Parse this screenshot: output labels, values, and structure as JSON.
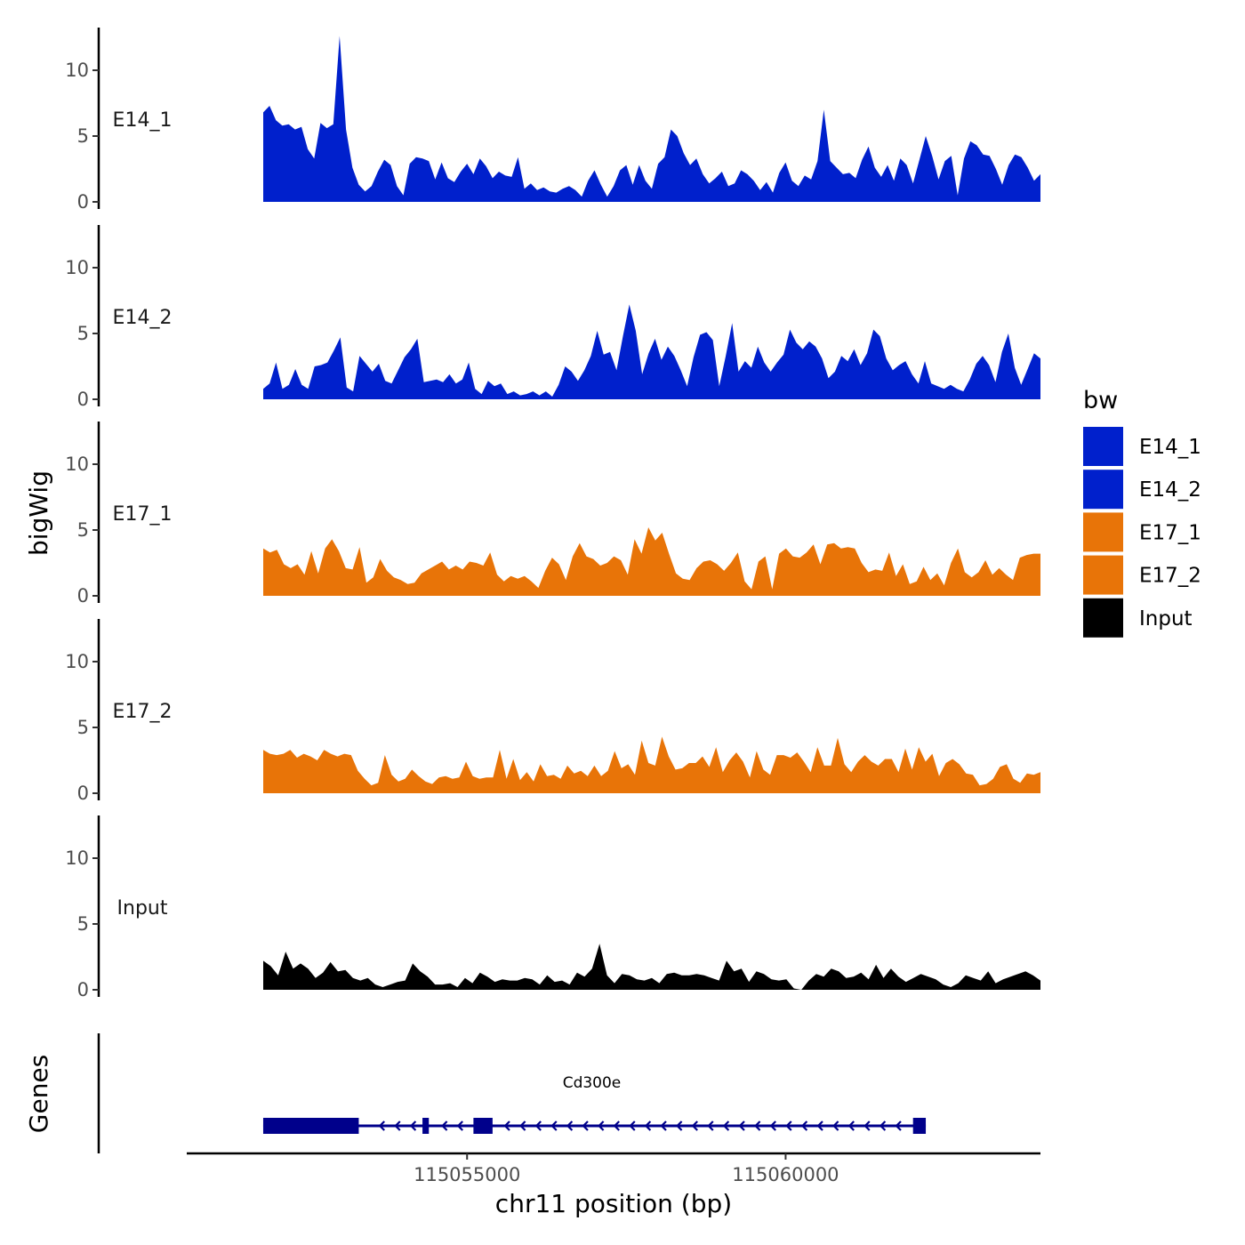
{
  "chart_data": {
    "type": "area",
    "title": "",
    "xlabel": "chr11 position (bp)",
    "ylabel": "bigWig",
    "genes_label": "Genes",
    "xlim": [
      115050600,
      115064000
    ],
    "x_ticks": [
      115055000,
      115060000
    ],
    "x_tick_labels": [
      "115055000",
      "115060000"
    ],
    "ylim": [
      0,
      13
    ],
    "y_ticks": [
      0,
      5,
      10
    ],
    "y_tick_labels": [
      "0",
      "5",
      "10"
    ],
    "region": [
      115051800,
      115064000
    ],
    "legend": {
      "title": "bw",
      "position": "right",
      "entries": [
        {
          "label": "E14_1",
          "color": "#0020CC"
        },
        {
          "label": "E14_2",
          "color": "#0020CC"
        },
        {
          "label": "E17_1",
          "color": "#E87408"
        },
        {
          "label": "E17_2",
          "color": "#E87408"
        },
        {
          "label": "Input",
          "color": "#000000"
        }
      ]
    },
    "series": [
      {
        "name": "E14_1",
        "color": "#0020CC",
        "values": [
          6.8,
          7.3,
          6.2,
          5.8,
          5.9,
          5.5,
          5.7,
          4.0,
          3.3,
          6.0,
          5.6,
          5.9,
          12.6,
          5.5,
          2.6,
          1.3,
          0.8,
          1.2,
          2.3,
          3.2,
          2.8,
          1.2,
          0.5,
          2.9,
          3.4,
          3.3,
          3.1,
          1.7,
          3.0,
          1.8,
          1.5,
          2.3,
          2.9,
          2.1,
          3.3,
          2.7,
          1.8,
          2.3,
          2.0,
          1.9,
          3.4,
          1.0,
          1.4,
          0.9,
          1.1,
          0.8,
          0.7,
          1.0,
          1.2,
          0.9,
          0.4,
          1.6,
          2.4,
          1.3,
          0.4,
          1.2,
          2.4,
          2.8,
          1.3,
          2.8,
          1.6,
          1.0,
          2.9,
          3.4,
          5.5,
          5.0,
          3.7,
          2.8,
          3.3,
          2.1,
          1.4,
          1.8,
          2.3,
          1.2,
          1.4,
          2.4,
          2.1,
          1.6,
          0.9,
          1.5,
          0.7,
          2.2,
          3.0,
          1.6,
          1.2,
          2.0,
          1.7,
          3.1,
          7.0,
          3.1,
          2.6,
          2.1,
          2.2,
          1.8,
          3.2,
          4.2,
          2.6,
          1.9,
          2.8,
          1.6,
          3.3,
          2.8,
          1.4,
          3.2,
          5.0,
          3.5,
          1.7,
          3.1,
          3.5,
          0.5,
          3.3,
          4.6,
          4.3,
          3.6,
          3.5,
          2.5,
          1.3,
          2.8,
          3.6,
          3.4,
          2.6,
          1.6,
          2.1
        ]
      },
      {
        "name": "E14_2",
        "color": "#0020CC",
        "values": [
          0.8,
          1.2,
          2.8,
          0.8,
          1.1,
          2.3,
          1.1,
          0.8,
          2.5,
          2.6,
          2.8,
          3.7,
          4.7,
          0.9,
          0.6,
          3.3,
          2.7,
          2.1,
          2.7,
          1.4,
          1.2,
          2.2,
          3.2,
          3.8,
          4.6,
          1.3,
          1.4,
          1.5,
          1.3,
          1.9,
          1.2,
          1.5,
          2.8,
          0.8,
          0.4,
          1.4,
          1.0,
          1.2,
          0.4,
          0.6,
          0.3,
          0.4,
          0.6,
          0.3,
          0.6,
          0.2,
          1.1,
          2.5,
          2.1,
          1.4,
          2.2,
          3.3,
          5.2,
          3.4,
          3.6,
          2.2,
          4.8,
          7.2,
          5.2,
          1.9,
          3.5,
          4.6,
          3.0,
          4.0,
          3.3,
          2.2,
          1.0,
          3.2,
          4.9,
          5.1,
          4.5,
          1.0,
          3.3,
          5.8,
          2.1,
          2.9,
          2.4,
          4.0,
          2.8,
          2.1,
          2.8,
          3.4,
          5.3,
          4.3,
          3.8,
          4.4,
          4.0,
          3.1,
          1.6,
          2.1,
          3.3,
          2.9,
          3.8,
          2.6,
          3.5,
          5.3,
          4.8,
          3.1,
          2.2,
          2.6,
          2.9,
          1.9,
          1.2,
          2.9,
          1.2,
          1.0,
          0.8,
          1.1,
          0.8,
          0.6,
          1.5,
          2.7,
          3.3,
          2.6,
          1.3,
          3.6,
          5.0,
          2.4,
          1.1,
          2.3,
          3.5,
          3.1
        ]
      },
      {
        "name": "E17_1",
        "color": "#E87408",
        "values": [
          3.6,
          3.3,
          3.5,
          2.4,
          2.1,
          2.4,
          1.6,
          3.4,
          1.7,
          3.6,
          4.3,
          3.4,
          2.1,
          2.0,
          3.7,
          1.0,
          1.4,
          2.8,
          1.9,
          1.4,
          1.2,
          0.9,
          1.0,
          1.7,
          2.0,
          2.3,
          2.6,
          2.0,
          2.3,
          2.0,
          2.6,
          2.5,
          2.3,
          3.3,
          1.6,
          1.1,
          1.5,
          1.3,
          1.5,
          1.1,
          0.6,
          1.9,
          2.9,
          2.4,
          1.2,
          3.0,
          4.0,
          3.0,
          2.8,
          2.3,
          2.5,
          3.0,
          2.7,
          1.6,
          4.3,
          3.2,
          5.2,
          4.2,
          4.8,
          3.2,
          1.7,
          1.3,
          1.2,
          2.1,
          2.6,
          2.7,
          2.4,
          1.9,
          2.5,
          3.3,
          1.1,
          0.5,
          2.6,
          3.0,
          0.5,
          3.2,
          3.6,
          3.0,
          2.9,
          3.3,
          3.9,
          2.4,
          3.9,
          4.0,
          3.6,
          3.7,
          3.6,
          2.5,
          1.8,
          2.0,
          1.9,
          3.3,
          1.5,
          2.4,
          0.9,
          1.1,
          2.2,
          1.2,
          1.7,
          0.8,
          2.5,
          3.6,
          1.8,
          1.4,
          1.8,
          2.7,
          1.6,
          2.1,
          1.6,
          1.2,
          2.9,
          3.1,
          3.2,
          3.2
        ]
      },
      {
        "name": "E17_2",
        "color": "#E87408",
        "values": [
          3.3,
          3.0,
          2.9,
          3.0,
          3.3,
          2.7,
          3.0,
          2.8,
          2.5,
          3.3,
          3.0,
          2.8,
          3.0,
          2.9,
          1.7,
          1.1,
          0.6,
          0.8,
          2.9,
          1.4,
          0.9,
          1.1,
          1.8,
          1.3,
          0.9,
          0.7,
          1.2,
          1.3,
          1.1,
          1.2,
          2.4,
          1.3,
          1.1,
          1.2,
          1.2,
          3.3,
          1.1,
          2.6,
          1.0,
          1.6,
          0.9,
          2.2,
          1.3,
          1.4,
          1.1,
          2.1,
          1.5,
          1.7,
          1.3,
          2.1,
          1.3,
          1.7,
          3.2,
          1.9,
          2.2,
          1.4,
          4.0,
          2.3,
          2.1,
          4.3,
          2.8,
          1.8,
          1.9,
          2.3,
          2.3,
          2.8,
          2.0,
          3.5,
          1.6,
          2.5,
          3.1,
          2.4,
          1.2,
          3.2,
          1.8,
          1.4,
          2.9,
          2.9,
          2.7,
          3.1,
          2.4,
          1.6,
          3.5,
          2.1,
          2.1,
          4.2,
          2.2,
          1.6,
          2.4,
          2.9,
          2.4,
          2.1,
          2.6,
          2.6,
          1.6,
          3.4,
          1.8,
          3.5,
          2.4,
          3.0,
          1.3,
          2.3,
          2.6,
          2.2,
          1.5,
          1.4,
          0.6,
          0.7,
          1.1,
          2.0,
          2.2,
          1.1,
          0.8,
          1.5,
          1.4,
          1.6
        ]
      },
      {
        "name": "Input",
        "color": "#000000",
        "values": [
          2.2,
          1.8,
          1.1,
          2.9,
          1.6,
          2.0,
          1.6,
          0.9,
          1.3,
          2.1,
          1.4,
          1.5,
          0.9,
          0.7,
          0.9,
          0.4,
          0.2,
          0.4,
          0.6,
          0.7,
          2.0,
          1.4,
          1.0,
          0.4,
          0.4,
          0.5,
          0.2,
          0.9,
          0.5,
          1.3,
          1.0,
          0.6,
          0.8,
          0.7,
          0.7,
          0.9,
          0.8,
          0.4,
          1.1,
          0.6,
          0.7,
          0.4,
          1.3,
          1.0,
          1.6,
          3.5,
          1.1,
          0.5,
          1.2,
          1.1,
          0.8,
          0.7,
          0.9,
          0.5,
          1.2,
          1.3,
          1.1,
          1.1,
          1.2,
          1.1,
          0.9,
          0.7,
          2.2,
          1.4,
          1.6,
          0.6,
          1.4,
          1.2,
          0.8,
          0.7,
          0.8,
          0.1,
          0.0,
          0.7,
          1.2,
          1.0,
          1.6,
          1.4,
          0.9,
          1.0,
          1.3,
          0.8,
          1.9,
          0.9,
          1.6,
          1.0,
          0.6,
          0.9,
          1.2,
          1.0,
          0.8,
          0.4,
          0.2,
          0.5,
          1.1,
          0.9,
          0.7,
          1.4,
          0.5,
          0.8,
          1.0,
          1.2,
          1.4,
          1.1,
          0.7
        ]
      }
    ],
    "gene_track": {
      "name": "Cd300e",
      "strand": "-",
      "color": "#00008B",
      "start": 115051800,
      "end": 115062200,
      "exons": [
        [
          115051800,
          115053300
        ],
        [
          115054300,
          115054400
        ],
        [
          115055100,
          115055400
        ],
        [
          115062000,
          115062200
        ]
      ]
    }
  }
}
